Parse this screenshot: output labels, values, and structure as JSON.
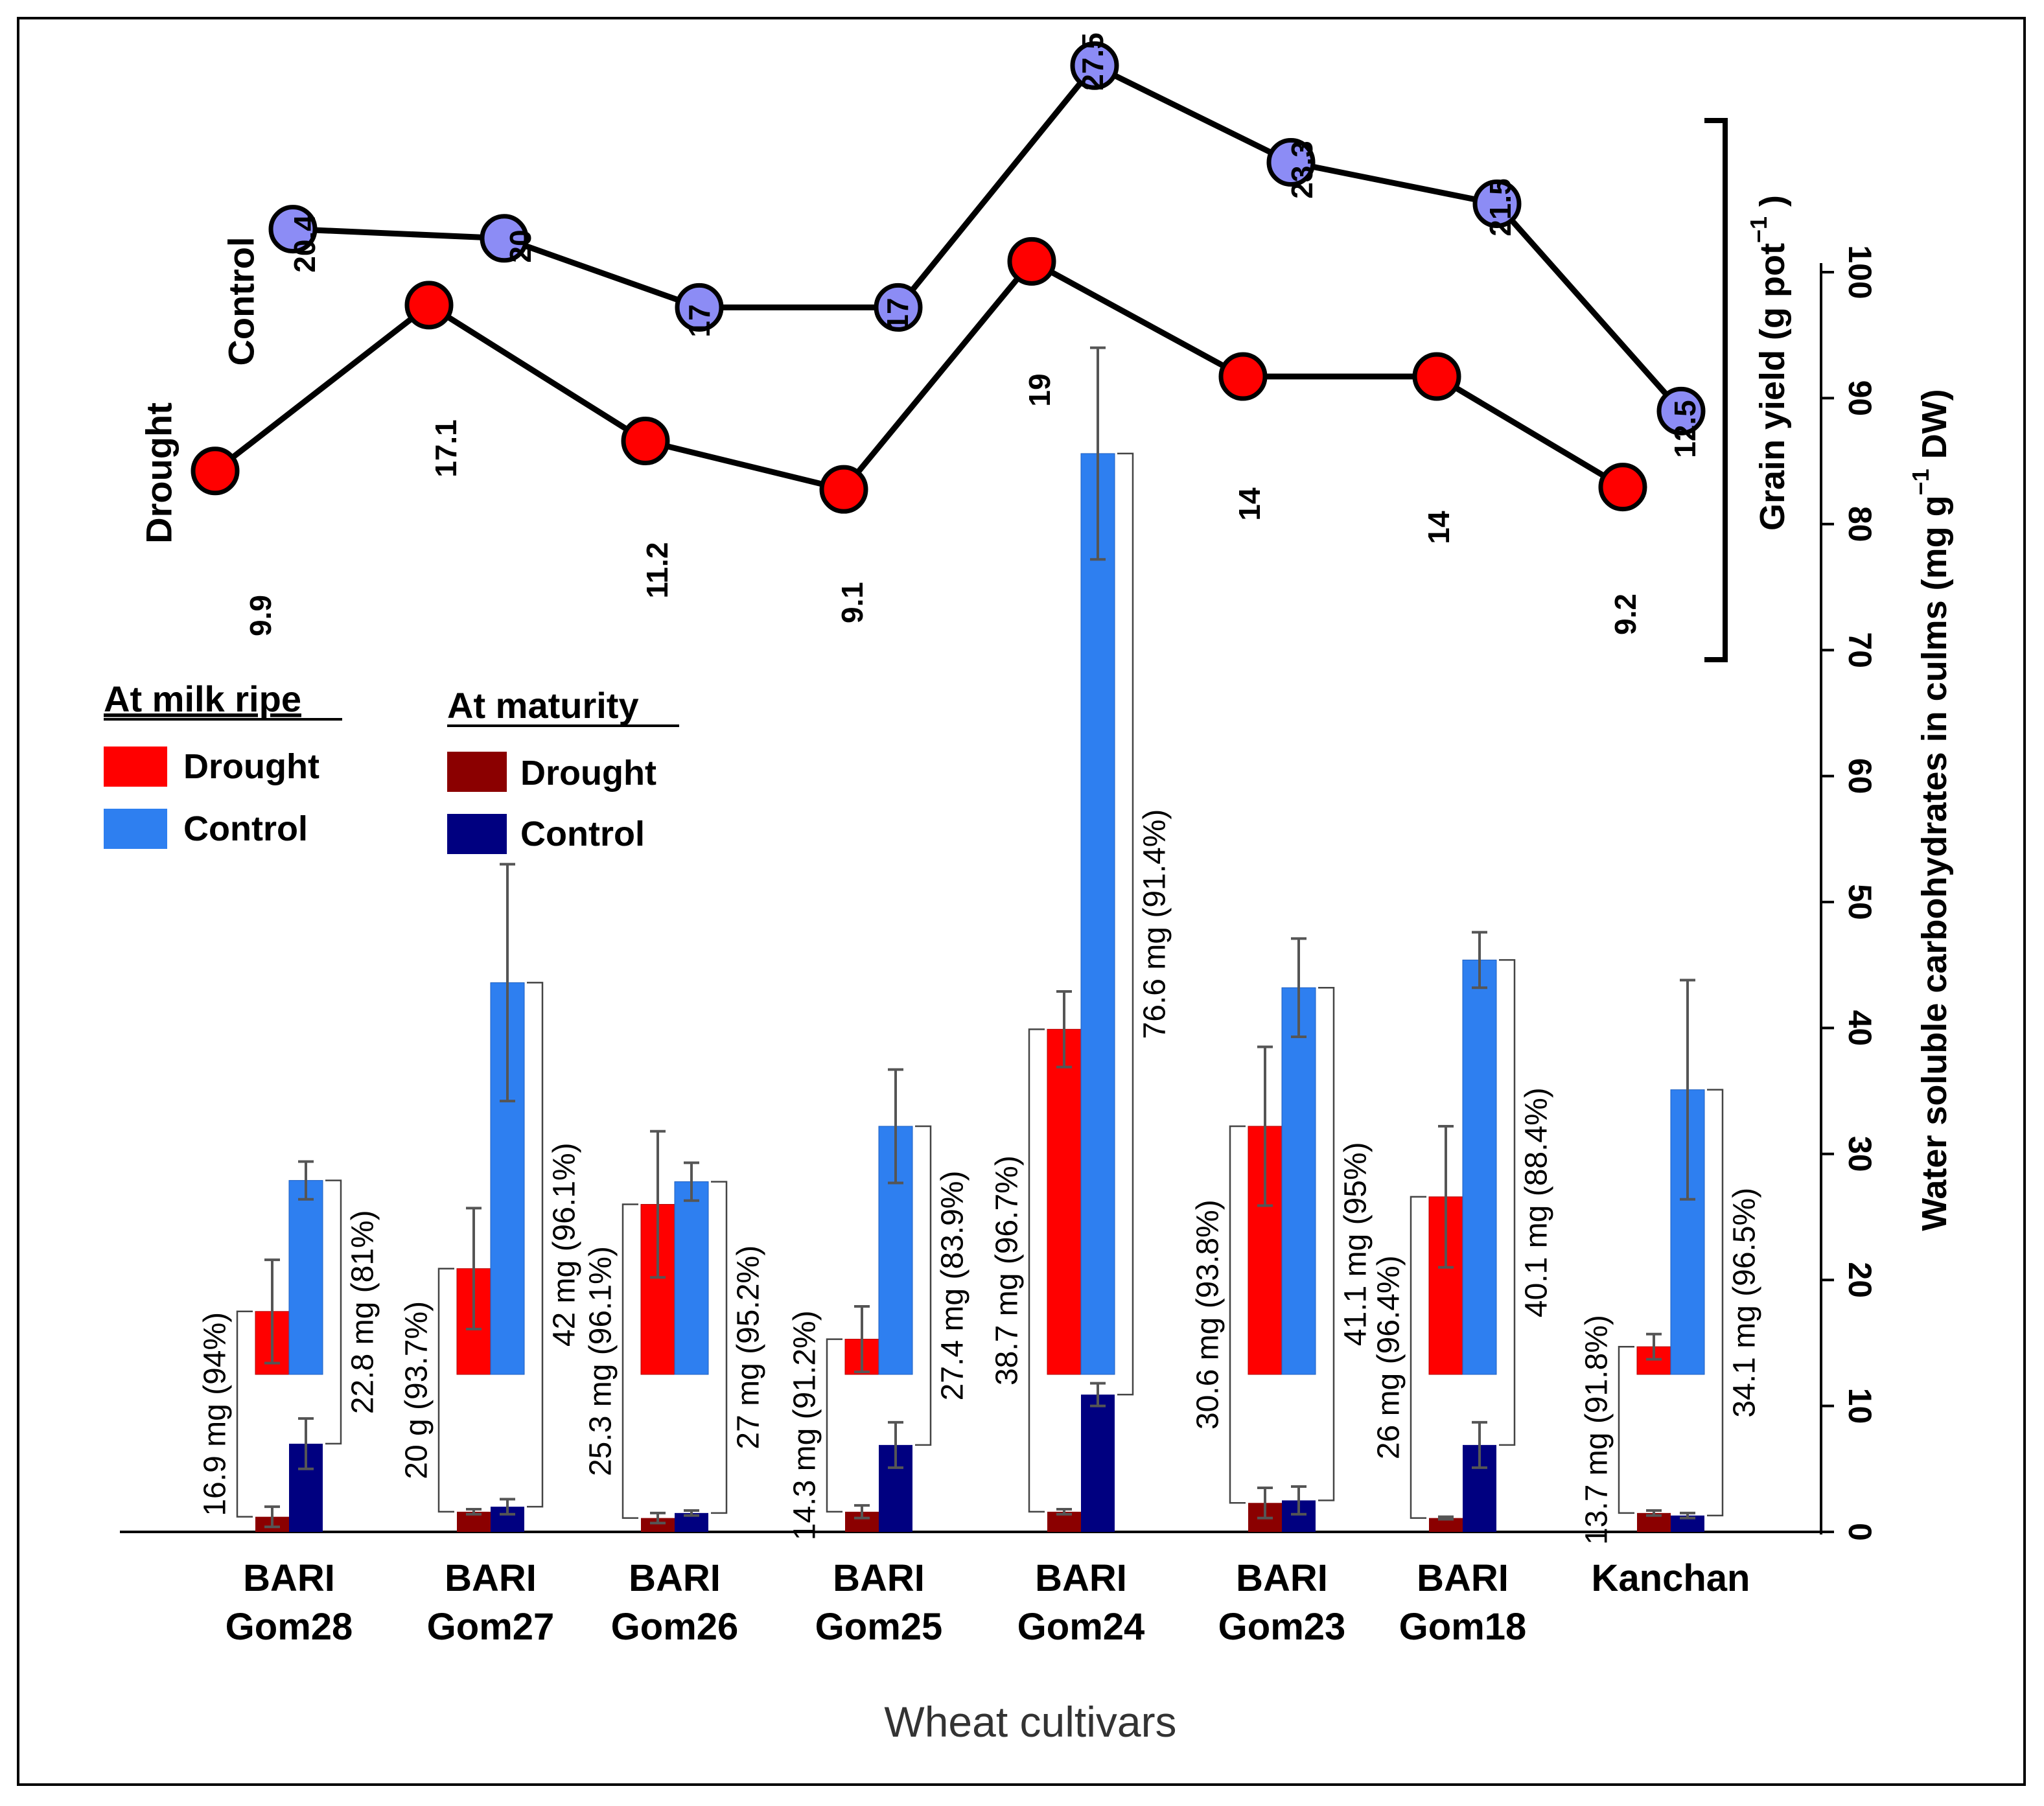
{
  "chart_data": {
    "type": "bar",
    "xlabel": "Wheat cultivars",
    "ylabel": "Water soluble carbohydrates in culms (mg g⁻¹ DW)",
    "ylabel_parts": {
      "main": "Water soluble carbohydrates in culms (mg g",
      "sup": "−1",
      "end": " DW)"
    },
    "ylim": [
      0,
      100
    ],
    "yticks": [
      "0",
      "10",
      "20",
      "30",
      "40",
      "50",
      "60",
      "70",
      "80",
      "90",
      "100"
    ],
    "grid": false,
    "categories": [
      {
        "line1": "BARI",
        "line2": "Gom28"
      },
      {
        "line1": "BARI",
        "line2": "Gom27"
      },
      {
        "line1": "BARI",
        "line2": "Gom26"
      },
      {
        "line1": "BARI",
        "line2": "Gom25"
      },
      {
        "line1": "BARI",
        "line2": "Gom24"
      },
      {
        "line1": "BARI",
        "line2": "Gom23"
      },
      {
        "line1": "BARI",
        "line2": "Gom18"
      },
      {
        "line1": "",
        "line2": "Kanchan"
      }
    ],
    "bar_baseline": 12.5,
    "legend": {
      "milk_title": "At milk ripe",
      "maturity_title": "At maturity",
      "drought": "Drought",
      "control": "Control"
    },
    "series": [
      {
        "name": "Drought",
        "stage": "At milk ripe",
        "color": "#ff0000",
        "values": [
          17.5,
          20.9,
          26.0,
          15.3,
          39.9,
          32.2,
          26.6,
          14.7
        ],
        "errors": [
          4.1,
          4.8,
          5.8,
          2.6,
          3.0,
          6.3,
          5.6,
          1.0
        ]
      },
      {
        "name": "Control",
        "stage": "At milk ripe",
        "color": "#2e7ff0",
        "values": [
          27.9,
          43.6,
          27.8,
          32.2,
          85.6,
          43.2,
          45.4,
          35.1
        ],
        "errors": [
          1.5,
          9.4,
          1.5,
          4.5,
          8.4,
          3.9,
          2.2,
          8.7
        ]
      },
      {
        "name": "Drought",
        "stage": "At maturity",
        "color": "#8b0000",
        "values": [
          1.2,
          1.6,
          1.1,
          1.6,
          1.6,
          2.3,
          1.1,
          1.5
        ],
        "errors": [
          0.8,
          0.2,
          0.4,
          0.5,
          0.2,
          1.2,
          0.1,
          0.2
        ]
      },
      {
        "name": "Control",
        "stage": "At maturity",
        "color": "#000080",
        "values": [
          7.0,
          2.0,
          1.5,
          6.9,
          10.9,
          2.5,
          6.9,
          1.3
        ],
        "errors": [
          2.0,
          0.6,
          0.2,
          1.8,
          0.9,
          1.1,
          1.8,
          0.2
        ]
      }
    ],
    "remobilization_labels": {
      "drought": [
        "16.9 mg (94%)",
        "20 g (93.7%)",
        "25.3 mg (96.1%)",
        "14.3 mg (91.2%)",
        "38.7 mg (96.7%)",
        "30.6 mg (93.8%)",
        "26 mg (96.4%)",
        "13.7 mg (91.8%)"
      ],
      "control": [
        "22.8 mg (81%)",
        "42 mg (96.1%)",
        "27 mg (95.2%)",
        "27.4 mg (83.9%)",
        "76.6 mg (91.4%)",
        "41.1 mg (95%)",
        "40.1 mg (88.4%)",
        "34.1 mg (96.5%)"
      ]
    },
    "grain_yield": {
      "axis_label_parts": {
        "main": "Grain yield (g pot",
        "sup": "−1",
        "end": " )"
      },
      "series_labels": {
        "control": "Control",
        "drought": "Drought"
      },
      "control": {
        "values": [
          20.4,
          20,
          17,
          17,
          27.5,
          23.3,
          21.5,
          12.5
        ],
        "labels": [
          "20.4",
          "20",
          "17",
          "17",
          "27.5",
          "23.3",
          "21.5",
          "12.5"
        ],
        "color": "#8c8cf5"
      },
      "drought": {
        "values": [
          9.9,
          17.1,
          11.2,
          9.1,
          19,
          14,
          14,
          9.2
        ],
        "labels": [
          "9.9",
          "17.1",
          "11.2",
          "9.1",
          "19",
          "14",
          "14",
          "9.2"
        ],
        "color": "#ff0000"
      }
    }
  }
}
